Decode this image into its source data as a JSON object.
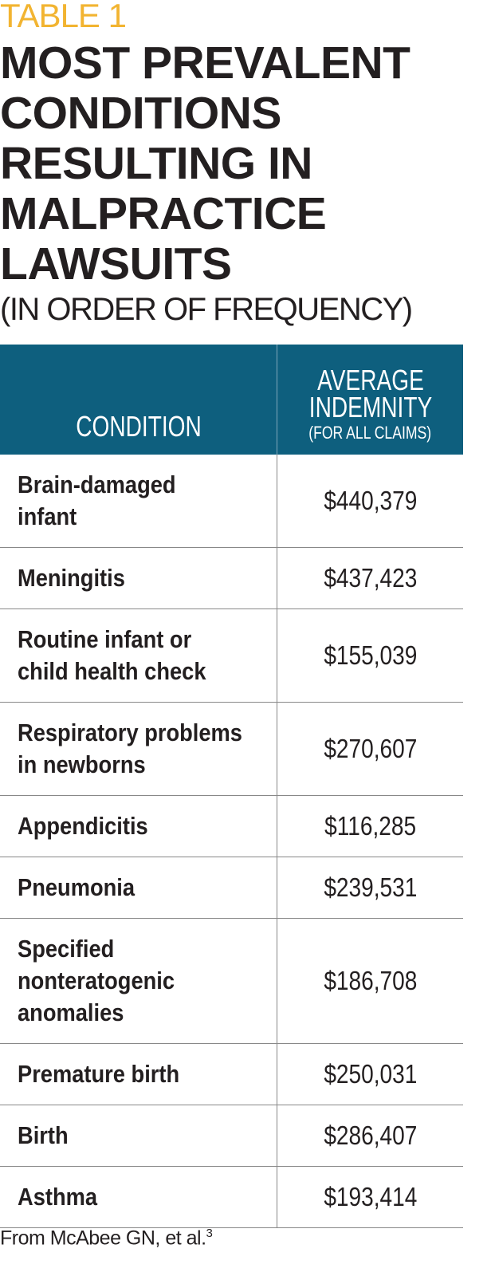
{
  "label": "TABLE 1",
  "title": [
    "MOST PREVALENT",
    "CONDITIONS",
    "RESULTING IN",
    "MALPRACTICE",
    "LAWSUITS"
  ],
  "subtitle": "(IN ORDER OF FREQUENCY)",
  "table": {
    "header": {
      "condition": "CONDITION",
      "indemnity": [
        "AVERAGE",
        "INDEMNITY"
      ],
      "indemnity_note": "(FOR ALL CLAIMS)"
    },
    "rows": [
      {
        "condition": [
          "Brain-damaged",
          "infant"
        ],
        "indemnity": "$440,379"
      },
      {
        "condition": [
          "Meningitis"
        ],
        "indemnity": "$437,423"
      },
      {
        "condition": [
          "Routine infant or",
          "child health check"
        ],
        "indemnity": "$155,039"
      },
      {
        "condition": [
          "Respiratory problems",
          "in newborns"
        ],
        "indemnity": "$270,607"
      },
      {
        "condition": [
          "Appendicitis"
        ],
        "indemnity": "$116,285"
      },
      {
        "condition": [
          "Pneumonia"
        ],
        "indemnity": "$239,531"
      },
      {
        "condition": [
          "Specified",
          "nonteratogenic",
          "anomalies"
        ],
        "indemnity": "$186,708"
      },
      {
        "condition": [
          "Premature birth"
        ],
        "indemnity": "$250,031"
      },
      {
        "condition": [
          "Birth"
        ],
        "indemnity": "$286,407"
      },
      {
        "condition": [
          "Asthma"
        ],
        "indemnity": "$193,414"
      }
    ]
  },
  "footnote": {
    "text": "From McAbee GN, et al.",
    "ref": "3"
  }
}
